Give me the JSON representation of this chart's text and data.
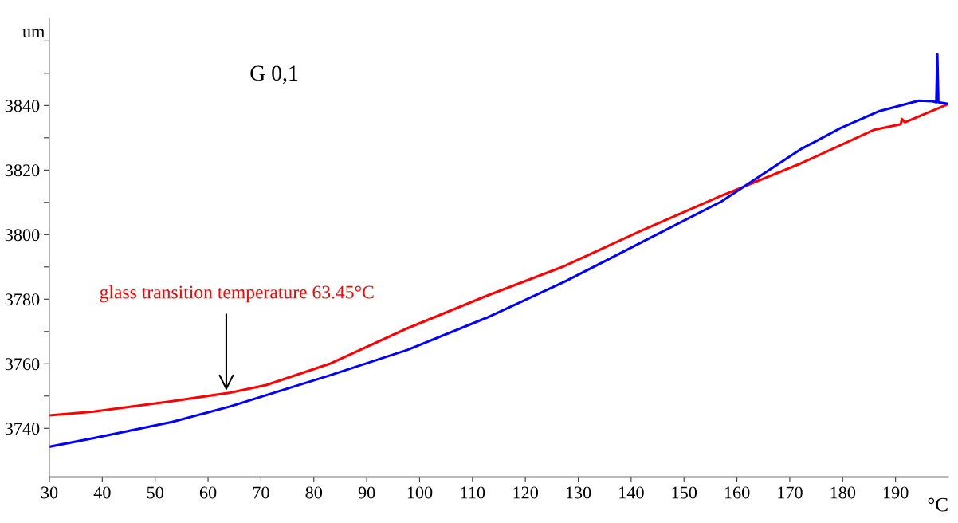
{
  "chart_data": {
    "type": "line",
    "title": "G 0,1",
    "xlabel": "°C",
    "ylabel": "um",
    "xlim": [
      30,
      200
    ],
    "xticks": [
      30,
      40,
      50,
      60,
      70,
      80,
      90,
      100,
      110,
      120,
      130,
      140,
      150,
      160,
      170,
      180,
      190
    ],
    "ylim": [
      3725,
      3867
    ],
    "yticks": [
      3740,
      {
        "value": 3750,
        "label": null
      },
      3760,
      {
        "value": 3770,
        "label": null
      },
      3780,
      {
        "value": 3790,
        "label": null
      },
      3800,
      {
        "value": 3810,
        "label": null
      },
      3820,
      {
        "value": 3830,
        "label": null
      },
      3840,
      {
        "value": 3850,
        "label": null
      },
      {
        "value": 3860,
        "label": null
      }
    ],
    "marker": "none",
    "line_style": "solid",
    "series": [
      {
        "color": "#ff0000",
        "x": [
          30,
          38.4,
          53.2,
          64,
          71,
          83,
          97.7,
          112.6,
          127,
          142,
          157,
          161.5,
          172,
          186,
          191,
          191.2,
          191.8,
          200
        ],
        "values": [
          3744,
          3745.2,
          3748.4,
          3751,
          3753.4,
          3760,
          3771,
          3781,
          3790,
          3801.3,
          3812,
          3815,
          3822,
          3832.5,
          3834.2,
          3835.8,
          3834.8,
          3840.5
        ]
      },
      {
        "color": "#0000ff",
        "x": [
          30,
          38.4,
          53.2,
          64,
          83,
          97.7,
          112.6,
          127.4,
          142.2,
          157,
          172,
          179.6,
          187,
          194.4,
          197,
          197.7,
          197.9,
          198.1,
          200
        ],
        "values": [
          3734.3,
          3737,
          3742,
          3746.7,
          3756.4,
          3764.3,
          3774.2,
          3785.4,
          3797.8,
          3810.2,
          3826.4,
          3833,
          3838.3,
          3841.5,
          3841.3,
          3841,
          3855.9,
          3841,
          3840.5
        ]
      }
    ],
    "annotations": [
      {
        "text": "glass transition temperature 63.45°C",
        "x": 63.45,
        "y": 3751
      }
    ]
  }
}
